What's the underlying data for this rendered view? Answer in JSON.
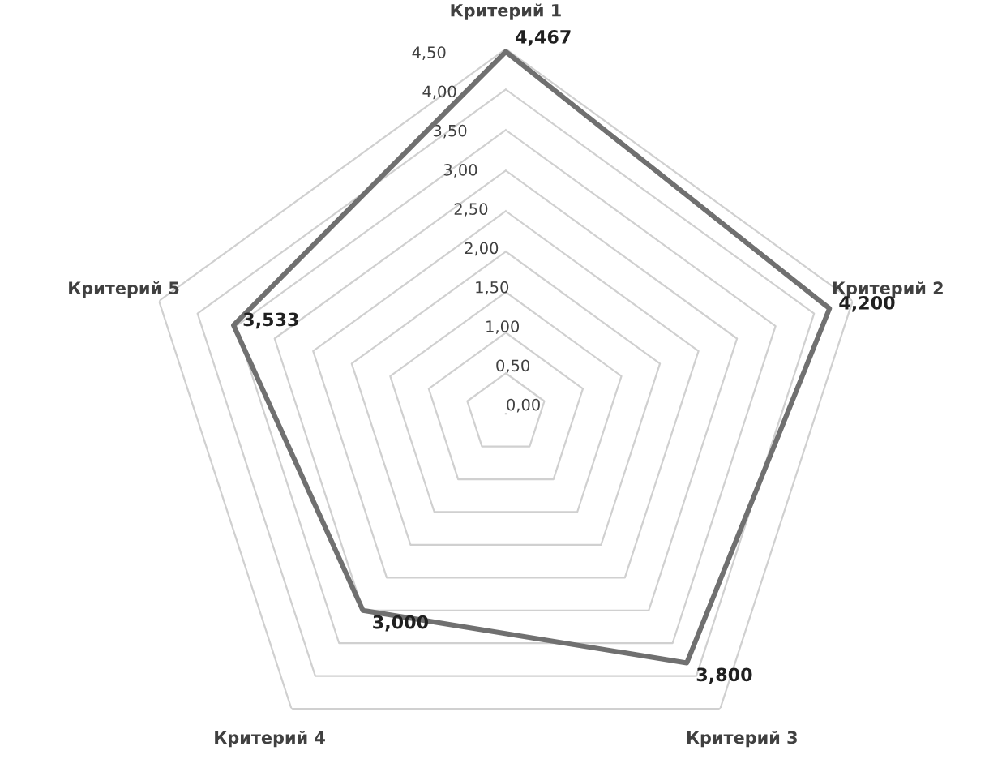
{
  "chart_data": {
    "type": "radar",
    "categories": [
      "Критерий 1",
      "Критерий 2",
      "Критерий 3",
      "Критерий 4",
      "Критерий 5"
    ],
    "series": [
      {
        "color": "#707070",
        "values": [
          4.467,
          4.2,
          3.8,
          3.0,
          3.533
        ]
      }
    ],
    "ylim": [
      0,
      4.5
    ],
    "yticks": [
      {
        "value": 0,
        "label": "0,00"
      },
      {
        "value": 0.5,
        "label": "0,50"
      },
      {
        "value": 1,
        "label": "1,00"
      },
      {
        "value": 1.5,
        "label": "1,50"
      },
      {
        "value": 2,
        "label": "2,00"
      },
      {
        "value": 2.5,
        "label": "2,50"
      },
      {
        "value": 3,
        "label": "3,00"
      },
      {
        "value": 3.5,
        "label": "3,50"
      },
      {
        "value": 4,
        "label": "4,00"
      },
      {
        "value": 4.5,
        "label": "4,50"
      }
    ],
    "value_labels": [
      "4,467",
      "4,200",
      "3,800",
      "3,000",
      "3,533"
    ],
    "grid": true
  }
}
